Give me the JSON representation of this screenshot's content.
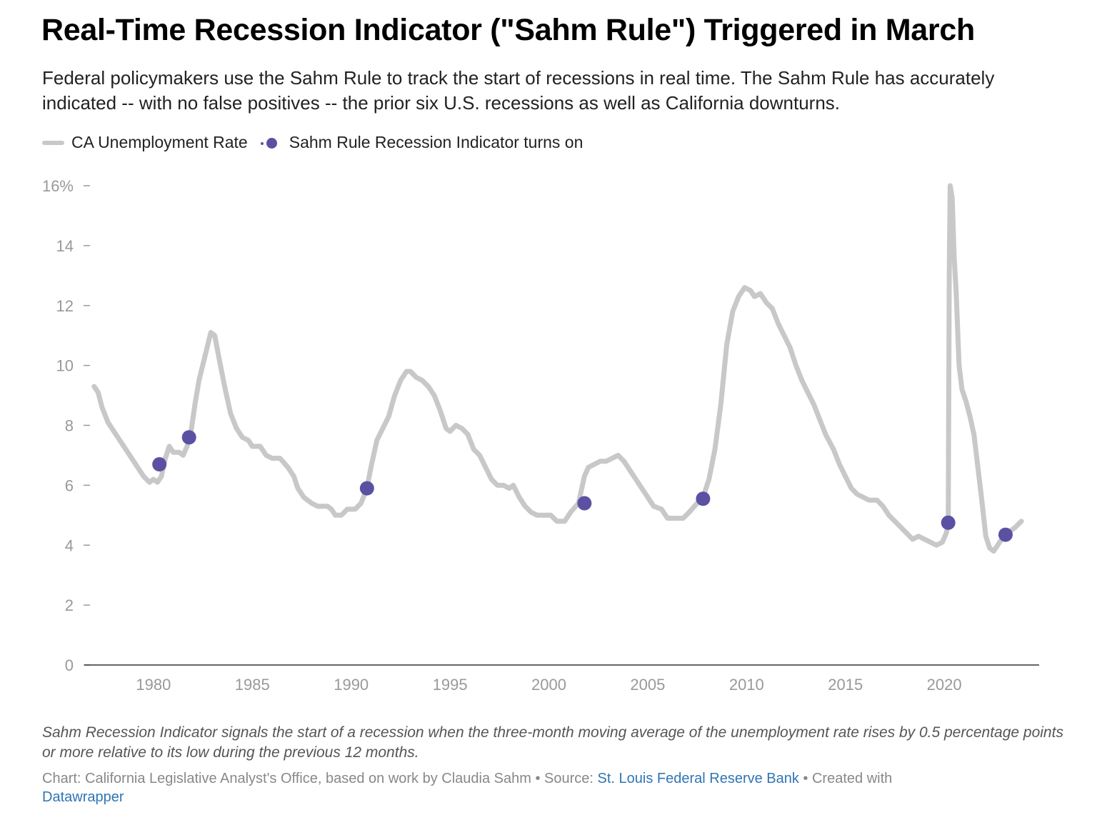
{
  "title": "Real-Time Recession Indicator (\"Sahm Rule\") Triggered in March",
  "subtitle": "Federal policymakers use the Sahm Rule to track the start of recessions in real time. The Sahm Rule has accurately indicated -- with no false positives -- the prior six U.S. recessions as well as California downturns.",
  "note": "Sahm Recession Indicator signals the start of a recession when the three-month moving average of the unemployment rate rises by 0.5 percentage points or more relative to its low during the previous 12 months.",
  "credits": {
    "chart_prefix": "Chart: California Legislative Analyst's Office, based on work by Claudia Sahm • Source: ",
    "source_link": "St. Louis Federal Reserve Bank",
    "created_with": " • Created with ",
    "tool_link": "Datawrapper"
  },
  "colors": {
    "line": "#c8c8c8",
    "dot": "#5b51a2",
    "axis_text": "#999999",
    "link": "#2f75b5"
  },
  "chart_data": {
    "type": "line",
    "legend": {
      "position": "top-left",
      "line_label": "CA Unemployment Rate",
      "dot_label": "Sahm Rule Recession Indicator turns on"
    },
    "xlim": [
      1976.5,
      2024.8
    ],
    "ylim": [
      0,
      16
    ],
    "x_ticks": [
      1980,
      1985,
      1990,
      1995,
      2000,
      2005,
      2010,
      2015,
      2020
    ],
    "y_ticks": [
      {
        "value": 16,
        "label": "16%"
      },
      {
        "value": 14,
        "label": "14"
      },
      {
        "value": 12,
        "label": "12"
      },
      {
        "value": 10,
        "label": "10"
      },
      {
        "value": 8,
        "label": "8"
      },
      {
        "value": 6,
        "label": "6"
      },
      {
        "value": 4,
        "label": "4"
      },
      {
        "value": 2,
        "label": "2"
      },
      {
        "value": 0,
        "label": "0"
      }
    ],
    "grid": false,
    "series": [
      {
        "name": "CA Unemployment Rate",
        "points": [
          [
            1977.0,
            9.3
          ],
          [
            1977.2,
            9.1
          ],
          [
            1977.4,
            8.6
          ],
          [
            1977.7,
            8.1
          ],
          [
            1978.0,
            7.8
          ],
          [
            1978.3,
            7.5
          ],
          [
            1978.6,
            7.2
          ],
          [
            1978.9,
            6.9
          ],
          [
            1979.2,
            6.6
          ],
          [
            1979.5,
            6.3
          ],
          [
            1979.8,
            6.1
          ],
          [
            1980.0,
            6.2
          ],
          [
            1980.2,
            6.1
          ],
          [
            1980.4,
            6.3
          ],
          [
            1980.6,
            6.9
          ],
          [
            1980.8,
            7.3
          ],
          [
            1981.0,
            7.1
          ],
          [
            1981.3,
            7.1
          ],
          [
            1981.5,
            7.0
          ],
          [
            1981.7,
            7.3
          ],
          [
            1981.9,
            7.8
          ],
          [
            1982.1,
            8.7
          ],
          [
            1982.3,
            9.5
          ],
          [
            1982.6,
            10.3
          ],
          [
            1982.9,
            11.1
          ],
          [
            1983.1,
            11.0
          ],
          [
            1983.3,
            10.3
          ],
          [
            1983.6,
            9.3
          ],
          [
            1983.9,
            8.4
          ],
          [
            1984.2,
            7.9
          ],
          [
            1984.5,
            7.6
          ],
          [
            1984.8,
            7.5
          ],
          [
            1985.0,
            7.3
          ],
          [
            1985.4,
            7.3
          ],
          [
            1985.7,
            7.0
          ],
          [
            1986.0,
            6.9
          ],
          [
            1986.4,
            6.9
          ],
          [
            1986.8,
            6.6
          ],
          [
            1987.1,
            6.3
          ],
          [
            1987.3,
            5.9
          ],
          [
            1987.6,
            5.6
          ],
          [
            1988.0,
            5.4
          ],
          [
            1988.3,
            5.3
          ],
          [
            1988.8,
            5.3
          ],
          [
            1989.0,
            5.2
          ],
          [
            1989.2,
            5.0
          ],
          [
            1989.5,
            5.0
          ],
          [
            1989.8,
            5.2
          ],
          [
            1990.2,
            5.2
          ],
          [
            1990.5,
            5.4
          ],
          [
            1990.8,
            5.9
          ],
          [
            1991.0,
            6.6
          ],
          [
            1991.3,
            7.5
          ],
          [
            1991.6,
            7.9
          ],
          [
            1991.9,
            8.3
          ],
          [
            1992.2,
            9.0
          ],
          [
            1992.5,
            9.5
          ],
          [
            1992.8,
            9.8
          ],
          [
            1993.0,
            9.8
          ],
          [
            1993.3,
            9.6
          ],
          [
            1993.6,
            9.5
          ],
          [
            1993.9,
            9.3
          ],
          [
            1994.2,
            9.0
          ],
          [
            1994.5,
            8.5
          ],
          [
            1994.8,
            7.9
          ],
          [
            1995.0,
            7.8
          ],
          [
            1995.3,
            8.0
          ],
          [
            1995.6,
            7.9
          ],
          [
            1995.9,
            7.7
          ],
          [
            1996.2,
            7.2
          ],
          [
            1996.5,
            7.0
          ],
          [
            1996.8,
            6.6
          ],
          [
            1997.1,
            6.2
          ],
          [
            1997.4,
            6.0
          ],
          [
            1997.7,
            6.0
          ],
          [
            1998.0,
            5.9
          ],
          [
            1998.2,
            6.0
          ],
          [
            1998.5,
            5.6
          ],
          [
            1998.8,
            5.3
          ],
          [
            1999.1,
            5.1
          ],
          [
            1999.4,
            5.0
          ],
          [
            1999.8,
            5.0
          ],
          [
            2000.1,
            5.0
          ],
          [
            2000.4,
            4.8
          ],
          [
            2000.8,
            4.8
          ],
          [
            2001.1,
            5.1
          ],
          [
            2001.5,
            5.4
          ],
          [
            2001.8,
            6.3
          ],
          [
            2002.0,
            6.6
          ],
          [
            2002.3,
            6.7
          ],
          [
            2002.6,
            6.8
          ],
          [
            2002.9,
            6.8
          ],
          [
            2003.2,
            6.9
          ],
          [
            2003.5,
            7.0
          ],
          [
            2003.8,
            6.8
          ],
          [
            2004.1,
            6.5
          ],
          [
            2004.4,
            6.2
          ],
          [
            2004.7,
            5.9
          ],
          [
            2005.0,
            5.6
          ],
          [
            2005.3,
            5.3
          ],
          [
            2005.7,
            5.2
          ],
          [
            2006.0,
            4.9
          ],
          [
            2006.4,
            4.9
          ],
          [
            2006.8,
            4.9
          ],
          [
            2007.1,
            5.1
          ],
          [
            2007.5,
            5.4
          ],
          [
            2007.8,
            5.6
          ],
          [
            2008.1,
            6.2
          ],
          [
            2008.4,
            7.2
          ],
          [
            2008.7,
            8.7
          ],
          [
            2009.0,
            10.7
          ],
          [
            2009.3,
            11.8
          ],
          [
            2009.6,
            12.3
          ],
          [
            2009.9,
            12.6
          ],
          [
            2010.2,
            12.5
          ],
          [
            2010.4,
            12.3
          ],
          [
            2010.7,
            12.4
          ],
          [
            2011.0,
            12.1
          ],
          [
            2011.3,
            11.9
          ],
          [
            2011.6,
            11.4
          ],
          [
            2011.9,
            11.0
          ],
          [
            2012.2,
            10.6
          ],
          [
            2012.5,
            10.0
          ],
          [
            2012.8,
            9.5
          ],
          [
            2013.1,
            9.1
          ],
          [
            2013.4,
            8.7
          ],
          [
            2013.7,
            8.2
          ],
          [
            2014.0,
            7.7
          ],
          [
            2014.4,
            7.2
          ],
          [
            2014.7,
            6.7
          ],
          [
            2015.0,
            6.3
          ],
          [
            2015.3,
            5.9
          ],
          [
            2015.6,
            5.7
          ],
          [
            2015.9,
            5.6
          ],
          [
            2016.2,
            5.5
          ],
          [
            2016.6,
            5.5
          ],
          [
            2016.9,
            5.3
          ],
          [
            2017.2,
            5.0
          ],
          [
            2017.5,
            4.8
          ],
          [
            2017.8,
            4.6
          ],
          [
            2018.1,
            4.4
          ],
          [
            2018.4,
            4.2
          ],
          [
            2018.7,
            4.3
          ],
          [
            2019.0,
            4.2
          ],
          [
            2019.3,
            4.1
          ],
          [
            2019.6,
            4.0
          ],
          [
            2019.9,
            4.1
          ],
          [
            2020.1,
            4.4
          ],
          [
            2020.2,
            4.7
          ],
          [
            2020.25,
            13.0
          ],
          [
            2020.3,
            16.0
          ],
          [
            2020.4,
            15.6
          ],
          [
            2020.5,
            13.6
          ],
          [
            2020.6,
            12.5
          ],
          [
            2020.75,
            10.0
          ],
          [
            2020.9,
            9.2
          ],
          [
            2021.1,
            8.8
          ],
          [
            2021.3,
            8.3
          ],
          [
            2021.5,
            7.7
          ],
          [
            2021.7,
            6.6
          ],
          [
            2021.9,
            5.5
          ],
          [
            2022.1,
            4.3
          ],
          [
            2022.3,
            3.9
          ],
          [
            2022.5,
            3.8
          ],
          [
            2022.7,
            4.0
          ],
          [
            2022.9,
            4.2
          ],
          [
            2023.1,
            4.3
          ],
          [
            2023.4,
            4.5
          ],
          [
            2023.6,
            4.6
          ],
          [
            2023.9,
            4.8
          ]
        ]
      }
    ],
    "indicator_points": [
      [
        1980.3,
        6.7
      ],
      [
        1981.8,
        7.6
      ],
      [
        1990.8,
        5.9
      ],
      [
        2001.8,
        5.4
      ],
      [
        2007.8,
        5.55
      ],
      [
        2020.2,
        4.75
      ],
      [
        2023.1,
        4.35
      ]
    ]
  }
}
